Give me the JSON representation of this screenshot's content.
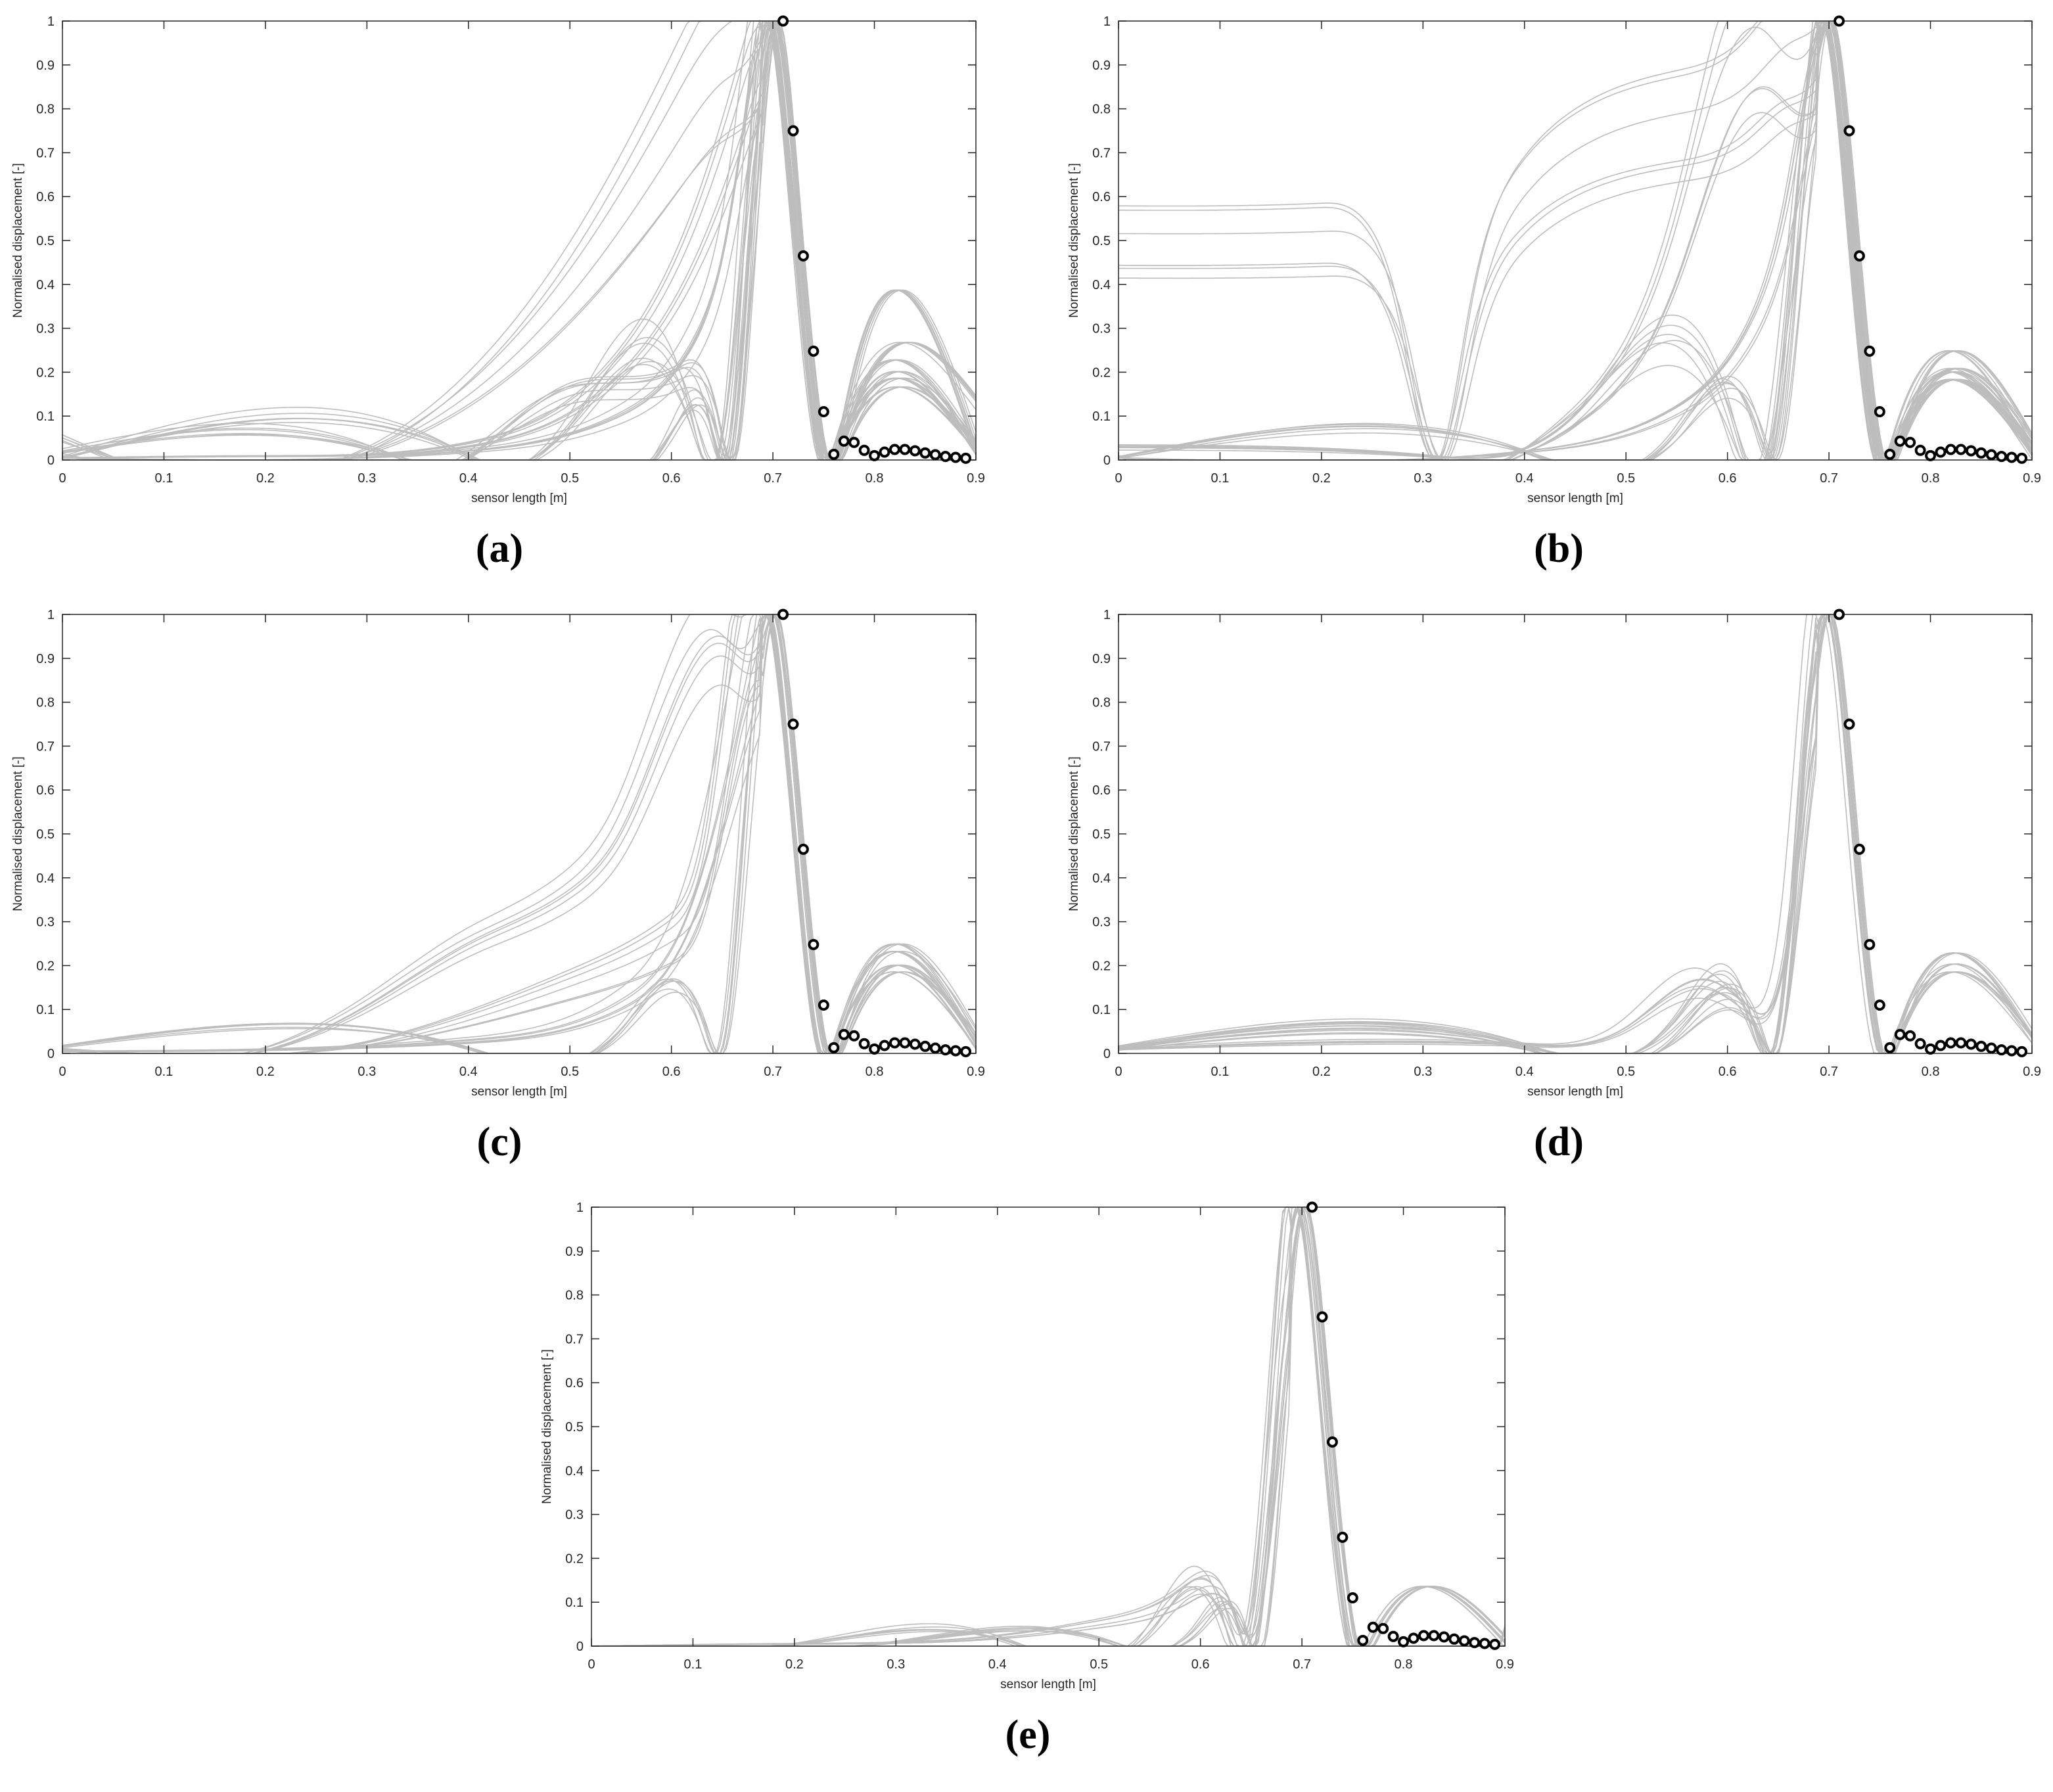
{
  "figure": {
    "colors": {
      "simulation_line": "#bdbdbd",
      "measured_marker": "#000000",
      "axes": "#262626"
    }
  },
  "chart_data": [
    {
      "type": "line",
      "panel_label": "(a)",
      "xlabel": "sensor length [m]",
      "ylabel": "Normalised displacement [-]",
      "xlim": [
        0,
        0.9
      ],
      "ylim": [
        0,
        1
      ],
      "xticks": [
        "0",
        "0.1",
        "0.2",
        "0.3",
        "0.4",
        "0.5",
        "0.6",
        "0.7",
        "0.8",
        "0.9"
      ],
      "yticks": [
        "0",
        "0.1",
        "0.2",
        "0.3",
        "0.4",
        "0.5",
        "0.6",
        "0.7",
        "0.8",
        "0.9",
        "1"
      ],
      "grid": false,
      "measured_points": {
        "x": [
          0.71,
          0.72,
          0.73,
          0.74,
          0.75,
          0.76,
          0.77,
          0.78,
          0.79,
          0.8,
          0.81,
          0.82,
          0.83,
          0.84,
          0.85,
          0.86,
          0.87,
          0.88,
          0.89
        ],
        "y": [
          1.0,
          0.75,
          0.465,
          0.248,
          0.11,
          0.013,
          0.043,
          0.04,
          0.022,
          0.01,
          0.018,
          0.024,
          0.024,
          0.021,
          0.016,
          0.012,
          0.008,
          0.006,
          0.004
        ]
      },
      "simulation_curves": [
        {
          "x": [
            0,
            0.3,
            0.5,
            0.6,
            0.65,
            0.68,
            0.7,
            0.72,
            0.75,
            0.77,
            0.9
          ],
          "y": [
            0.01,
            0.02,
            0.4,
            0.75,
            0.92,
            0.99,
            1.0,
            0.62,
            0.0,
            0.04,
            0.03
          ]
        },
        {
          "x": [
            0,
            0.2,
            0.4,
            0.55,
            0.62,
            0.67,
            0.7,
            0.72,
            0.75,
            0.77,
            0.9
          ],
          "y": [
            0.005,
            0.01,
            0.04,
            0.25,
            0.55,
            0.92,
            1.0,
            0.62,
            0.0,
            0.03,
            0.03
          ]
        },
        {
          "x": [
            0,
            0.4,
            0.55,
            0.62,
            0.66,
            0.69,
            0.7,
            0.72,
            0.75,
            0.77,
            0.9
          ],
          "y": [
            0.005,
            0.02,
            0.1,
            0.25,
            0.55,
            0.97,
            1.0,
            0.62,
            0.0,
            0.06,
            0.04
          ]
        },
        {
          "x": [
            0,
            0.4,
            0.6,
            0.64,
            0.66,
            0.69,
            0.7,
            0.72,
            0.75,
            0.78,
            0.9
          ],
          "y": [
            0.005,
            0.01,
            0.06,
            0.08,
            0.02,
            0.9,
            1.0,
            0.62,
            0.0,
            0.18,
            0.04
          ]
        },
        {
          "x": [
            0,
            0.4,
            0.5,
            0.6,
            0.64,
            0.66,
            0.7,
            0.72,
            0.75,
            0.77,
            0.9
          ],
          "y": [
            0.045,
            0.01,
            0.15,
            0.18,
            0.1,
            0.02,
            1.0,
            0.62,
            0.0,
            0.07,
            0.13
          ]
        },
        {
          "x": [
            0,
            0.3,
            0.5,
            0.62,
            0.65,
            0.7,
            0.72,
            0.75,
            0.77,
            0.9
          ],
          "y": [
            0.02,
            0.03,
            0.08,
            0.1,
            0.03,
            1.0,
            0.62,
            0.0,
            0.05,
            0.02
          ]
        }
      ]
    },
    {
      "type": "line",
      "panel_label": "(b)",
      "xlabel": "sensor length [m]",
      "ylabel": "Normalised displacement [-]",
      "xlim": [
        0,
        0.9
      ],
      "ylim": [
        0,
        1
      ],
      "xticks": [
        "0",
        "0.1",
        "0.2",
        "0.3",
        "0.4",
        "0.5",
        "0.6",
        "0.7",
        "0.8",
        "0.9"
      ],
      "yticks": [
        "0",
        "0.1",
        "0.2",
        "0.3",
        "0.4",
        "0.5",
        "0.6",
        "0.7",
        "0.8",
        "0.9",
        "1"
      ],
      "grid": false,
      "measured_points": {
        "x": [
          0.71,
          0.72,
          0.73,
          0.74,
          0.75,
          0.76,
          0.77,
          0.78,
          0.79,
          0.8,
          0.81,
          0.82,
          0.83,
          0.84,
          0.85,
          0.86,
          0.87,
          0.88,
          0.89
        ],
        "y": [
          1.0,
          0.75,
          0.465,
          0.248,
          0.11,
          0.013,
          0.043,
          0.04,
          0.022,
          0.01,
          0.018,
          0.024,
          0.024,
          0.021,
          0.016,
          0.012,
          0.008,
          0.006,
          0.004
        ]
      },
      "simulation_curves": [
        {
          "x": [
            0,
            0.1,
            0.2,
            0.25,
            0.28,
            0.32,
            0.35,
            0.4,
            0.45,
            0.55,
            0.62,
            0.66,
            0.69,
            0.7,
            0.72,
            0.75,
            0.77,
            0.9
          ],
          "y": [
            0.51,
            0.51,
            0.515,
            0.47,
            0.3,
            0.0,
            0.3,
            0.6,
            0.7,
            0.78,
            0.85,
            0.94,
            0.99,
            1.0,
            0.62,
            0.0,
            0.04,
            0.03
          ]
        },
        {
          "x": [
            0,
            0.45,
            0.55,
            0.6,
            0.64,
            0.66,
            0.69,
            0.7,
            0.72,
            0.75,
            0.77,
            0.9
          ],
          "y": [
            0.01,
            0.1,
            0.5,
            0.9,
            1.0,
            0.95,
            0.97,
            1.0,
            0.62,
            0.0,
            0.04,
            0.03
          ]
        },
        {
          "x": [
            0,
            0.3,
            0.45,
            0.53,
            0.6,
            0.64,
            0.7,
            0.72,
            0.75,
            0.77,
            0.9
          ],
          "y": [
            0.03,
            0.01,
            0.1,
            0.28,
            0.1,
            0.02,
            1.0,
            0.62,
            0.0,
            0.05,
            0.04
          ]
        },
        {
          "x": [
            0,
            0.4,
            0.55,
            0.62,
            0.66,
            0.69,
            0.7,
            0.72,
            0.75,
            0.77,
            0.9
          ],
          "y": [
            0.005,
            0.02,
            0.12,
            0.3,
            0.6,
            0.97,
            1.0,
            0.62,
            0.0,
            0.07,
            0.04
          ]
        },
        {
          "x": [
            0,
            0.4,
            0.55,
            0.63,
            0.65,
            0.7,
            0.72,
            0.75,
            0.77,
            0.9
          ],
          "y": [
            0.005,
            0.02,
            0.06,
            0.08,
            0.02,
            1.0,
            0.62,
            0.0,
            0.05,
            0.02
          ]
        }
      ]
    },
    {
      "type": "line",
      "panel_label": "(c)",
      "xlabel": "sensor length [m]",
      "ylabel": "Normalised displacement [-]",
      "xlim": [
        0,
        0.9
      ],
      "ylim": [
        0,
        1
      ],
      "xticks": [
        "0",
        "0.1",
        "0.2",
        "0.3",
        "0.4",
        "0.5",
        "0.6",
        "0.7",
        "0.8",
        "0.9"
      ],
      "yticks": [
        "0",
        "0.1",
        "0.2",
        "0.3",
        "0.4",
        "0.5",
        "0.6",
        "0.7",
        "0.8",
        "0.9",
        "1"
      ],
      "grid": false,
      "measured_points": {
        "x": [
          0.71,
          0.72,
          0.73,
          0.74,
          0.75,
          0.76,
          0.77,
          0.78,
          0.79,
          0.8,
          0.81,
          0.82,
          0.83,
          0.84,
          0.85,
          0.86,
          0.87,
          0.88,
          0.89
        ],
        "y": [
          1.0,
          0.75,
          0.465,
          0.248,
          0.11,
          0.013,
          0.043,
          0.04,
          0.022,
          0.01,
          0.018,
          0.024,
          0.024,
          0.021,
          0.016,
          0.012,
          0.008,
          0.006,
          0.004
        ]
      },
      "simulation_curves": [
        {
          "x": [
            0,
            0.2,
            0.3,
            0.4,
            0.5,
            0.55,
            0.6,
            0.65,
            0.68,
            0.7,
            0.72,
            0.75,
            0.77,
            0.9
          ],
          "y": [
            0.01,
            0.01,
            0.12,
            0.27,
            0.4,
            0.55,
            0.85,
            1.0,
            0.97,
            1.0,
            0.62,
            0.0,
            0.04,
            0.03
          ]
        },
        {
          "x": [
            0,
            0.3,
            0.5,
            0.6,
            0.64,
            0.67,
            0.7,
            0.72,
            0.75,
            0.77,
            0.9
          ],
          "y": [
            0.01,
            0.02,
            0.15,
            0.25,
            0.45,
            0.9,
            1.0,
            0.62,
            0.0,
            0.06,
            0.04
          ]
        },
        {
          "x": [
            0,
            0.4,
            0.55,
            0.62,
            0.66,
            0.69,
            0.7,
            0.72,
            0.75,
            0.77,
            0.9
          ],
          "y": [
            0.005,
            0.03,
            0.12,
            0.35,
            0.7,
            0.98,
            1.0,
            0.62,
            0.0,
            0.07,
            0.04
          ]
        },
        {
          "x": [
            0,
            0.4,
            0.55,
            0.63,
            0.65,
            0.7,
            0.72,
            0.75,
            0.77,
            0.9
          ],
          "y": [
            0.015,
            0.01,
            0.05,
            0.06,
            0.02,
            1.0,
            0.62,
            0.0,
            0.05,
            0.02
          ]
        }
      ]
    },
    {
      "type": "line",
      "panel_label": "(d)",
      "xlabel": "sensor length [m]",
      "ylabel": "Normalised displacement [-]",
      "xlim": [
        0,
        0.9
      ],
      "ylim": [
        0,
        1
      ],
      "xticks": [
        "0",
        "0.1",
        "0.2",
        "0.3",
        "0.4",
        "0.5",
        "0.6",
        "0.7",
        "0.8",
        "0.9"
      ],
      "yticks": [
        "0",
        "0.1",
        "0.2",
        "0.3",
        "0.4",
        "0.5",
        "0.6",
        "0.7",
        "0.8",
        "0.9",
        "1"
      ],
      "grid": false,
      "measured_points": {
        "x": [
          0.71,
          0.72,
          0.73,
          0.74,
          0.75,
          0.76,
          0.77,
          0.78,
          0.79,
          0.8,
          0.81,
          0.82,
          0.83,
          0.84,
          0.85,
          0.86,
          0.87,
          0.88,
          0.89
        ],
        "y": [
          1.0,
          0.75,
          0.465,
          0.248,
          0.11,
          0.013,
          0.043,
          0.04,
          0.022,
          0.01,
          0.018,
          0.024,
          0.024,
          0.021,
          0.016,
          0.012,
          0.008,
          0.006,
          0.004
        ]
      },
      "simulation_curves": [
        {
          "x": [
            0,
            0.4,
            0.5,
            0.58,
            0.62,
            0.66,
            0.69,
            0.7,
            0.72,
            0.75,
            0.77,
            0.9
          ],
          "y": [
            0.01,
            0.02,
            0.06,
            0.16,
            0.1,
            0.3,
            0.95,
            1.0,
            0.62,
            0.0,
            0.04,
            0.04
          ]
        },
        {
          "x": [
            0,
            0.4,
            0.55,
            0.62,
            0.65,
            0.68,
            0.7,
            0.72,
            0.75,
            0.77,
            0.9
          ],
          "y": [
            0.015,
            0.02,
            0.08,
            0.1,
            0.05,
            0.8,
            1.0,
            0.62,
            0.0,
            0.06,
            0.04
          ]
        },
        {
          "x": [
            0,
            0.4,
            0.55,
            0.63,
            0.65,
            0.7,
            0.72,
            0.75,
            0.77,
            0.9
          ],
          "y": [
            0.01,
            0.01,
            0.04,
            0.05,
            0.02,
            1.0,
            0.62,
            0.0,
            0.05,
            0.03
          ]
        }
      ]
    },
    {
      "type": "line",
      "panel_label": "(e)",
      "xlabel": "sensor length [m]",
      "ylabel": "Normalised displacement [-]",
      "xlim": [
        0,
        0.9
      ],
      "ylim": [
        0,
        1
      ],
      "xticks": [
        "0",
        "0.1",
        "0.2",
        "0.3",
        "0.4",
        "0.5",
        "0.6",
        "0.7",
        "0.8",
        "0.9"
      ],
      "yticks": [
        "0",
        "0.1",
        "0.2",
        "0.3",
        "0.4",
        "0.5",
        "0.6",
        "0.7",
        "0.8",
        "0.9",
        "1"
      ],
      "grid": false,
      "measured_points": {
        "x": [
          0.71,
          0.72,
          0.73,
          0.74,
          0.75,
          0.76,
          0.77,
          0.78,
          0.79,
          0.8,
          0.81,
          0.82,
          0.83,
          0.84,
          0.85,
          0.86,
          0.87,
          0.88,
          0.89
        ],
        "y": [
          1.0,
          0.75,
          0.465,
          0.248,
          0.11,
          0.013,
          0.043,
          0.04,
          0.022,
          0.01,
          0.018,
          0.024,
          0.024,
          0.021,
          0.016,
          0.012,
          0.008,
          0.006,
          0.004
        ]
      },
      "simulation_curves": [
        {
          "x": [
            0,
            0.2,
            0.4,
            0.5,
            0.58,
            0.63,
            0.65,
            0.68,
            0.7,
            0.72,
            0.75,
            0.77,
            0.9
          ],
          "y": [
            0.0,
            0.005,
            0.02,
            0.05,
            0.11,
            0.08,
            0.05,
            0.75,
            1.0,
            0.62,
            0.0,
            0.02,
            0.01
          ]
        },
        {
          "x": [
            0,
            0.2,
            0.4,
            0.55,
            0.62,
            0.65,
            0.7,
            0.72,
            0.75,
            0.77,
            0.9
          ],
          "y": [
            0.0,
            0.005,
            0.02,
            0.04,
            0.08,
            0.02,
            1.0,
            0.62,
            0.0,
            0.02,
            0.01
          ]
        },
        {
          "x": [
            0,
            0.3,
            0.5,
            0.6,
            0.64,
            0.66,
            0.7,
            0.72,
            0.75,
            0.9
          ],
          "y": [
            0.0,
            0.01,
            0.02,
            0.05,
            0.06,
            0.0,
            1.0,
            0.62,
            0.0,
            0.005
          ]
        }
      ]
    }
  ]
}
